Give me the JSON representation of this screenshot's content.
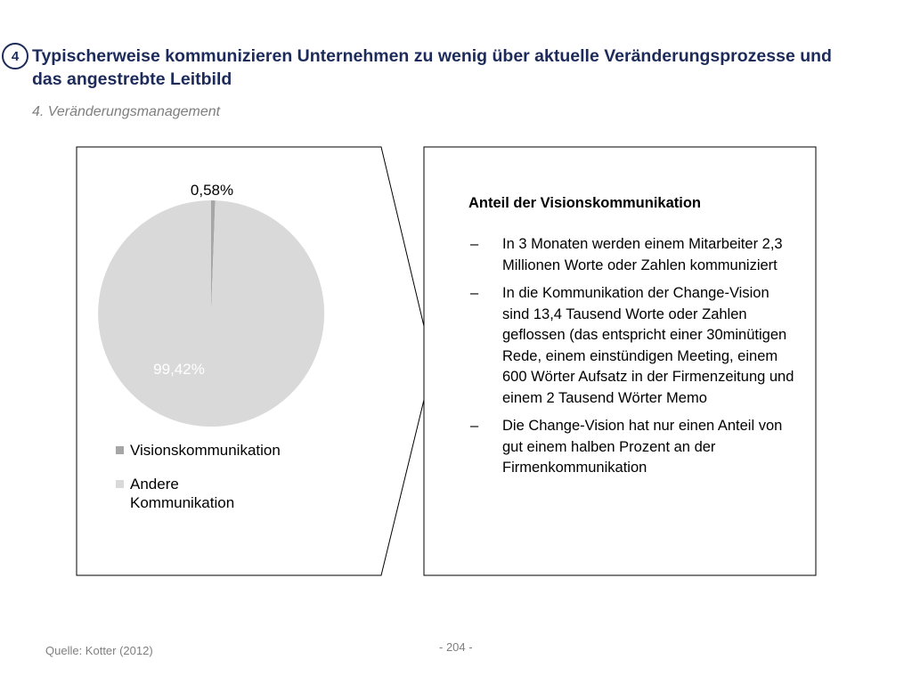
{
  "header": {
    "section_number": "4",
    "title": "Typischerweise kommunizieren Unternehmen zu wenig über aktuelle Veränderungsprozesse und das angestrebte Leitbild",
    "subtitle": "4. Veränderungsmanagement"
  },
  "chart_data": {
    "type": "pie",
    "categories": [
      "Visionskommunikation",
      "Andere Kommunikation"
    ],
    "values": [
      0.58,
      99.42
    ],
    "data_labels": [
      "0,58%",
      "99,42%"
    ],
    "colors": [
      "#a6a6a6",
      "#d9d9d9"
    ],
    "legend_position": "bottom",
    "start_angle": "top, clockwise"
  },
  "legend": {
    "items": [
      {
        "label": "Visionskommunikation",
        "color": "#a6a6a6"
      },
      {
        "label": "Andere Kommunikation",
        "color": "#d9d9d9"
      }
    ]
  },
  "text_panel": {
    "heading": "Anteil der Visionskommunikation",
    "dash": "–",
    "bullets": [
      "In 3 Monaten werden einem Mitarbeiter 2,3 Millionen Worte oder Zahlen kommuniziert",
      "In die Kommunikation der Change-Vision sind 13,4 Tausend Worte oder Zahlen geflossen (das entspricht einer 30minütigen Rede, einem einstündigen Meeting, einem 600 Wörter Aufsatz in der Firmenzeitung und einem 2 Tausend Wörter Memo",
      "Die Change-Vision hat nur einen Anteil von gut einem halben Prozent an der Firmenkommunikation"
    ]
  },
  "footer": {
    "source": "Quelle: Kotter (2012)",
    "page": "- 204 -"
  }
}
